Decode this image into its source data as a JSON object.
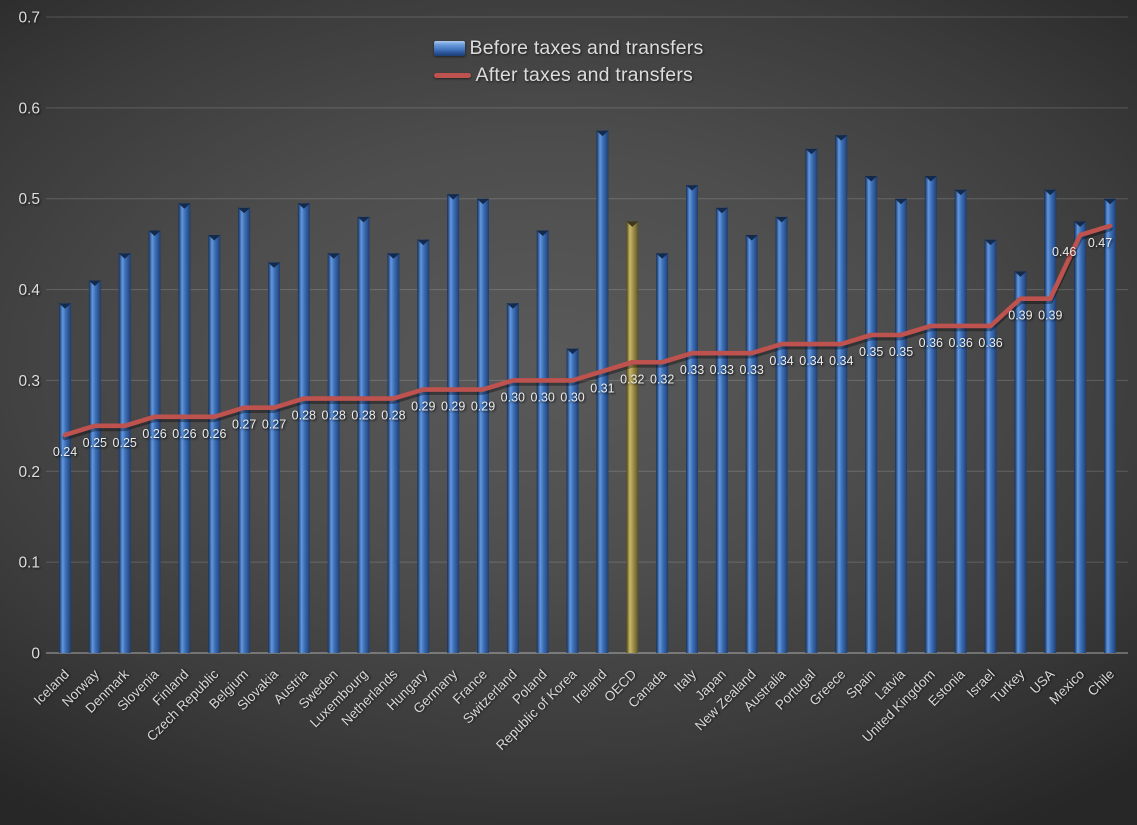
{
  "chart_data": {
    "type": "bar",
    "subtype": "combo-bar-line",
    "categories": [
      "Iceland",
      "Norway",
      "Denmark",
      "Slovenia",
      "Finland",
      "Czech Republic",
      "Belgium",
      "Slovakia",
      "Austria",
      "Sweden",
      "Luxembourg",
      "Netherlands",
      "Hungary",
      "Germany",
      "France",
      "Switzerland",
      "Poland",
      "Republic of Korea",
      "Ireland",
      "OECD",
      "Canada",
      "Italy",
      "Japan",
      "New Zealand",
      "Australia",
      "Portugal",
      "Greece",
      "Spain",
      "Latvia",
      "United Kingdom",
      "Estonia",
      "Israel",
      "Turkey",
      "USA",
      "Mexico",
      "Chile"
    ],
    "series": [
      {
        "name": "Before taxes and transfers",
        "type": "bar",
        "color": "#3f6fb4",
        "values": [
          0.385,
          0.41,
          0.44,
          0.465,
          0.495,
          0.46,
          0.49,
          0.43,
          0.495,
          0.44,
          0.48,
          0.44,
          0.455,
          0.505,
          0.5,
          0.385,
          0.465,
          0.335,
          0.575,
          0.475,
          0.44,
          0.515,
          0.49,
          0.46,
          0.48,
          0.555,
          0.57,
          0.525,
          0.5,
          0.525,
          0.51,
          0.455,
          0.42,
          0.51,
          0.475,
          0.5
        ]
      },
      {
        "name": "After taxes and transfers",
        "type": "line",
        "color": "#bd524f",
        "values": [
          0.24,
          0.25,
          0.25,
          0.26,
          0.26,
          0.26,
          0.27,
          0.27,
          0.28,
          0.28,
          0.28,
          0.28,
          0.29,
          0.29,
          0.29,
          0.3,
          0.3,
          0.3,
          0.31,
          0.32,
          0.32,
          0.33,
          0.33,
          0.33,
          0.34,
          0.34,
          0.34,
          0.35,
          0.35,
          0.36,
          0.36,
          0.36,
          0.39,
          0.39,
          0.46,
          0.47
        ],
        "data_labels": true,
        "data_label_format": "0.00"
      }
    ],
    "highlight": {
      "category": "OECD",
      "bar_color": "#a3934a"
    },
    "ylim": [
      0,
      0.7
    ],
    "ytick_labels": [
      "0",
      "0.1",
      "0.2",
      "0.3",
      "0.4",
      "0.5",
      "0.6",
      "0.7"
    ],
    "grid": "horizontal",
    "legend_position": "top-center",
    "xlabel": "",
    "ylabel": ""
  }
}
